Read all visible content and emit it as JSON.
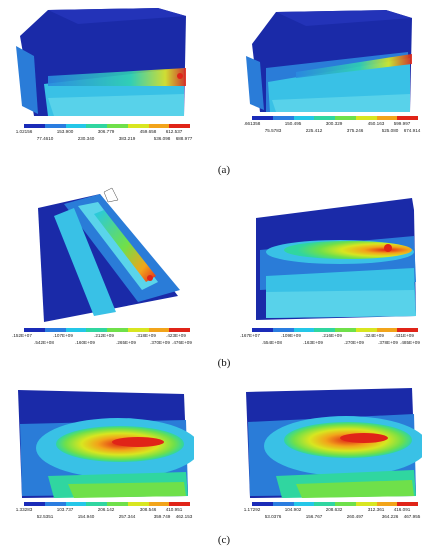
{
  "colors": {
    "scale": [
      "#1a2bb8",
      "#2a7de0",
      "#24c7e8",
      "#30d6a0",
      "#6fe04a",
      "#d8e620",
      "#f2a41a",
      "#e02418"
    ],
    "model_dark": "#1a2aa8",
    "model_mid": "#2a7cd8",
    "model_light": "#39c1e6"
  },
  "captions": {
    "a": "(a)",
    "b": "(b)",
    "c": "(c)"
  },
  "panels": {
    "a_left": {
      "upper": [
        "1.02156",
        "153.900",
        "306.779",
        "459.658",
        "612.537"
      ],
      "lower": [
        "77.4610",
        "230.340",
        "383.219",
        "536.098",
        "688.977"
      ]
    },
    "a_right": {
      "upper": [
        ".661358",
        "150.495",
        "300.329",
        "450.163",
        "599.997"
      ],
      "lower": [
        "75.5783",
        "225.412",
        "375.246",
        "525.080",
        "674.914"
      ]
    },
    "b_left": {
      "upper": [
        ".152E+07",
        ".107E+09",
        ".212E+09",
        ".318E+09",
        ".423E+09"
      ],
      "lower": [
        ".542E+08",
        ".160E+09",
        ".265E+09",
        ".370E+09",
        ".476E+09"
      ]
    },
    "b_right": {
      "upper": [
        ".167E+07",
        ".109E+09",
        ".216E+09",
        ".324E+09",
        ".431E+09"
      ],
      "lower": [
        ".554E+08",
        ".163E+09",
        ".270E+09",
        ".378E+09",
        ".485E+09"
      ]
    },
    "c_left": {
      "upper": [
        "1.33283",
        "103.737",
        "206.142",
        "308.546",
        "410.951"
      ],
      "lower": [
        "52.5351",
        "154.940",
        "257.344",
        "359.749",
        "462.153"
      ]
    },
    "c_right": {
      "upper": [
        "1.17292",
        "104.902",
        "208.632",
        "312.361",
        "416.091"
      ],
      "lower": [
        "53.0376",
        "156.767",
        "260.497",
        "364.226",
        "467.955"
      ]
    }
  }
}
